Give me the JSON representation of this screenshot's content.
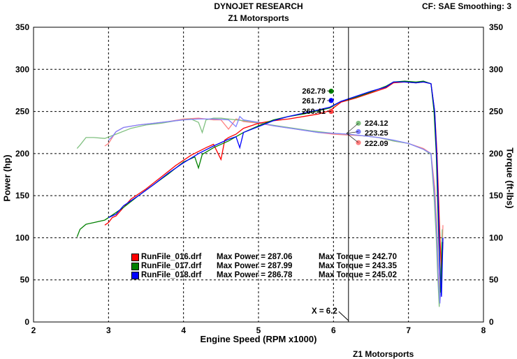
{
  "header": {
    "title": "DYNOJET RESEARCH",
    "subtitle": "Z1 Motorsports",
    "settings": "CF: SAE  Smoothing: 3"
  },
  "footer": "Z1 Motorsports",
  "chart_data": {
    "type": "line",
    "xlabel": "Engine Speed (RPM x1000)",
    "ylabel_left": "Power (hp)",
    "ylabel_right": "Torque (ft-lbs)",
    "xlim": [
      2,
      8
    ],
    "ylim": [
      0,
      350
    ],
    "xticks": [
      "2",
      "3",
      "4",
      "5",
      "6",
      "7",
      "8"
    ],
    "yticks": [
      "0",
      "50",
      "100",
      "150",
      "200",
      "250",
      "300",
      "350"
    ],
    "grid": true,
    "cursor": {
      "x": 6.2,
      "label": "X = 6.2"
    },
    "cursor_readouts": {
      "power": [
        "262.79",
        "261.77",
        "260.41"
      ],
      "torque": [
        "224.12",
        "223.25",
        "222.09"
      ]
    },
    "series": [
      {
        "name": "RunFile_016.drf",
        "color": "#ff0000",
        "marker_color": "#ff4040",
        "torque_marker_color": "#ff8080",
        "max_power_label": "Max Power = 287.06",
        "max_torque_label": "Max Torque = 242.70",
        "power_x": [
          2.95,
          3.0,
          3.05,
          3.1,
          3.2,
          3.3,
          3.5,
          3.7,
          3.9,
          4.1,
          4.3,
          4.4,
          4.5,
          4.55,
          4.6,
          4.7,
          4.8,
          5.0,
          5.2,
          5.4,
          5.6,
          5.8,
          5.95,
          6.1,
          6.3,
          6.5,
          6.7,
          6.8,
          6.95,
          7.1,
          7.2,
          7.3,
          7.35,
          7.38,
          7.4,
          7.42,
          7.44,
          7.46
        ],
        "power_y": [
          115,
          118,
          124,
          126,
          136,
          146,
          158,
          172,
          186,
          198,
          207,
          211,
          193,
          216,
          219,
          223,
          230,
          236,
          239,
          241,
          244,
          247,
          251,
          261,
          266,
          272,
          278,
          284,
          285,
          284,
          285,
          283,
          250,
          200,
          150,
          100,
          60,
          95
        ],
        "torque_x": [
          2.95,
          3.0,
          3.05,
          3.1,
          3.2,
          3.4,
          3.6,
          3.8,
          4.0,
          4.2,
          4.3,
          4.4,
          4.5,
          4.6,
          4.7,
          4.75,
          4.8,
          5.0,
          5.2,
          5.5,
          5.8,
          6.0,
          6.2,
          6.4,
          6.6,
          6.8,
          7.0,
          7.2,
          7.3,
          7.35,
          7.38,
          7.4,
          7.42,
          7.44,
          7.46
        ],
        "torque_y": [
          209,
          212,
          219,
          226,
          231,
          234,
          236,
          238,
          241,
          242,
          241,
          240,
          240,
          229,
          241,
          240,
          238,
          236,
          233,
          229,
          225,
          223,
          222,
          221,
          219,
          215,
          212,
          206,
          200,
          160,
          110,
          60,
          25,
          60,
          115
        ]
      },
      {
        "name": "RunFile_017.drf",
        "color": "#008000",
        "marker_color": "#008000",
        "torque_marker_color": "#80c080",
        "max_power_label": "Max Power = 287.99",
        "max_torque_label": "Max Torque = 243.35",
        "power_x": [
          2.58,
          2.62,
          2.7,
          2.8,
          2.95,
          3.05,
          3.2,
          3.4,
          3.6,
          3.8,
          4.0,
          4.15,
          4.2,
          4.25,
          4.4,
          4.6,
          4.8,
          5.0,
          5.2,
          5.4,
          5.6,
          5.8,
          5.95,
          6.1,
          6.3,
          6.5,
          6.7,
          6.8,
          6.95,
          7.1,
          7.2,
          7.3,
          7.34,
          7.37,
          7.39,
          7.41,
          7.43,
          7.45
        ],
        "power_y": [
          101,
          110,
          116,
          118,
          121,
          127,
          136,
          150,
          163,
          176,
          190,
          196,
          183,
          199,
          207,
          215,
          225,
          233,
          240,
          244,
          247,
          251,
          254,
          262,
          267,
          273,
          280,
          285,
          286,
          285,
          286,
          283,
          250,
          200,
          140,
          80,
          35,
          95
        ],
        "torque_x": [
          2.58,
          2.62,
          2.7,
          2.8,
          2.95,
          3.1,
          3.3,
          3.5,
          3.7,
          3.9,
          4.1,
          4.2,
          4.25,
          4.3,
          4.4,
          4.5,
          4.7,
          4.9,
          5.1,
          5.4,
          5.7,
          6.0,
          6.2,
          6.4,
          6.6,
          6.8,
          7.0,
          7.2,
          7.3,
          7.34,
          7.37,
          7.39,
          7.41,
          7.43,
          7.45
        ],
        "torque_y": [
          206,
          210,
          219,
          219,
          218,
          223,
          230,
          234,
          236,
          239,
          241,
          237,
          225,
          240,
          242,
          242,
          240,
          238,
          235,
          231,
          227,
          224,
          223,
          221,
          219,
          215,
          212,
          205,
          199,
          150,
          100,
          55,
          18,
          60,
          110
        ]
      },
      {
        "name": "RunFile_018.drf",
        "color": "#0000ff",
        "marker_color": "#0000ff",
        "torque_marker_color": "#8080ff",
        "max_power_label": "Max Power = 286.78",
        "max_torque_label": "Max Torque = 245.02",
        "power_x": [
          3.0,
          3.05,
          3.1,
          3.2,
          3.4,
          3.6,
          3.8,
          4.0,
          4.2,
          4.4,
          4.6,
          4.7,
          4.75,
          4.8,
          5.0,
          5.2,
          5.4,
          5.6,
          5.8,
          5.95,
          6.1,
          6.3,
          6.5,
          6.7,
          6.8,
          6.95,
          7.1,
          7.2,
          7.3,
          7.35,
          7.38,
          7.4,
          7.42,
          7.44,
          7.46
        ],
        "power_y": [
          124,
          126,
          128,
          138,
          150,
          163,
          177,
          189,
          200,
          209,
          217,
          220,
          207,
          225,
          232,
          239,
          244,
          248,
          252,
          255,
          262,
          268,
          274,
          279,
          285,
          285,
          284,
          285,
          283,
          250,
          190,
          130,
          60,
          30,
          100
        ],
        "torque_x": [
          3.0,
          3.05,
          3.1,
          3.2,
          3.4,
          3.6,
          3.8,
          4.0,
          4.2,
          4.4,
          4.6,
          4.7,
          4.75,
          4.8,
          5.0,
          5.2,
          5.5,
          5.8,
          6.0,
          6.2,
          6.4,
          6.6,
          6.8,
          7.0,
          7.2,
          7.3,
          7.35,
          7.38,
          7.4,
          7.42,
          7.44,
          7.46
        ],
        "torque_y": [
          216,
          220,
          226,
          231,
          234,
          236,
          238,
          240,
          241,
          241,
          240,
          232,
          244,
          240,
          237,
          233,
          229,
          225,
          224,
          223,
          221,
          219,
          216,
          212,
          205,
          200,
          150,
          100,
          50,
          22,
          50,
          100
        ]
      }
    ]
  }
}
